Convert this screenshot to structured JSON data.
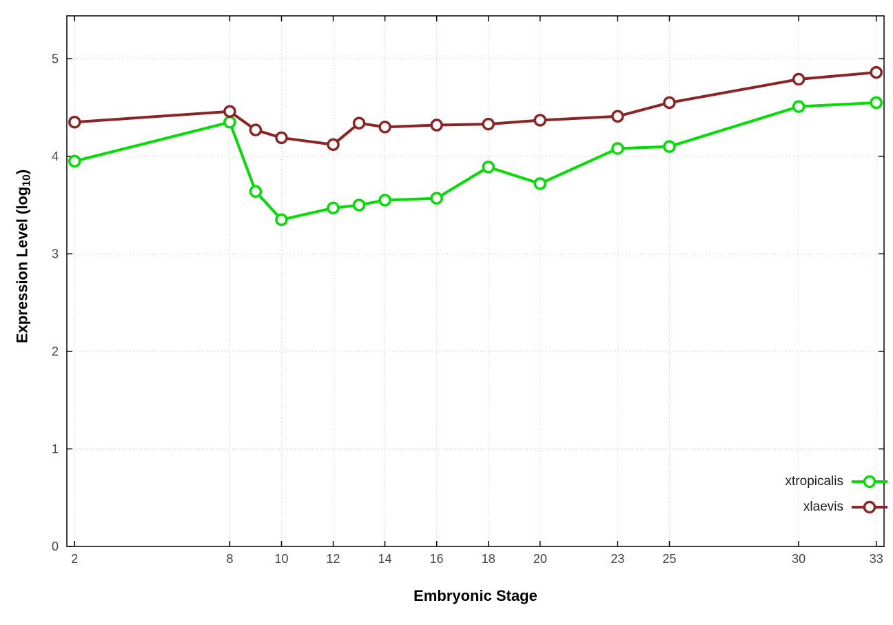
{
  "chart_data": {
    "type": "line",
    "title": "",
    "xlabel": "Embryonic Stage",
    "ylabel": "Expression Level (log10)",
    "ylabel_parts": {
      "prefix": "Expression Level (log",
      "subscript": "10",
      "suffix": ")"
    },
    "x": [
      2,
      8,
      9,
      10,
      12,
      13,
      14,
      16,
      18,
      20,
      23,
      25,
      30,
      33
    ],
    "x_tick_labels": [
      2,
      8,
      10,
      12,
      14,
      16,
      18,
      20,
      23,
      25,
      30,
      33
    ],
    "y_tick_labels": [
      0,
      1,
      2,
      3,
      4,
      5
    ],
    "xlim": [
      1.7,
      33.3
    ],
    "ylim": [
      0,
      5.44
    ],
    "grid": true,
    "grid_style": "dotted",
    "legend_position": "inside-bottom-right",
    "colors": {
      "grid": "#cccccc",
      "border": "#000000",
      "tick_text": "#444444"
    },
    "series": [
      {
        "name": "xtropicalis",
        "color": "#00dd00",
        "values": [
          3.95,
          4.35,
          3.64,
          3.35,
          3.47,
          3.5,
          3.55,
          3.57,
          3.89,
          3.72,
          4.08,
          4.1,
          4.51,
          4.55
        ]
      },
      {
        "name": "xlaevis",
        "color": "#8b2525",
        "values": [
          4.35,
          4.46,
          4.27,
          4.19,
          4.12,
          4.34,
          4.3,
          4.32,
          4.33,
          4.37,
          4.41,
          4.55,
          4.79,
          4.86
        ]
      }
    ]
  }
}
